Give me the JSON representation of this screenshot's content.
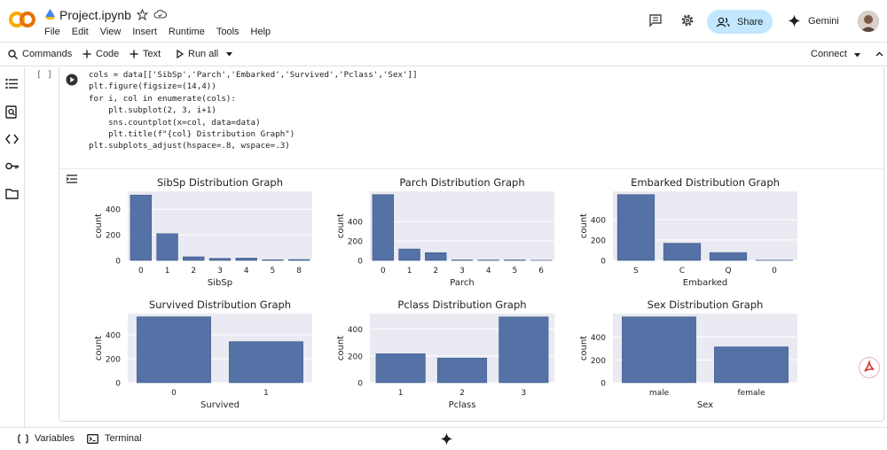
{
  "notebook": {
    "title": "Project.ipynb",
    "menu": [
      "File",
      "Edit",
      "View",
      "Insert",
      "Runtime",
      "Tools",
      "Help"
    ]
  },
  "header": {
    "share_label": "Share",
    "gemini_label": "Gemini"
  },
  "toolbar": {
    "commands_label": "Commands",
    "code_label": "Code",
    "text_label": "Text",
    "run_all_label": "Run all",
    "connect_label": "Connect"
  },
  "cell": {
    "execution_count": "[ ]",
    "code_lines": [
      "cols = data[['SibSp','Parch','Embarked','Survived','Pclass','Sex']]",
      "plt.figure(figsize=(14,4))",
      "for i, col in enumerate(cols):",
      "    plt.subplot(2, 3, i+1)",
      "    sns.countplot(x=col, data=data)",
      "    plt.title(f\"{col} Distribution Graph\")",
      "plt.subplots_adjust(hspace=.8, wspace=.3)"
    ]
  },
  "statusbar": {
    "variables_label": "Variables",
    "terminal_label": "Terminal"
  },
  "colors": {
    "bar": "#5572a6",
    "plot_bg": "#eaeaf2",
    "share_bg": "#c2e7ff",
    "logo_orange": "#f9ab00",
    "logo_dark": "#e8710a"
  },
  "chart_data": [
    {
      "type": "bar",
      "title": "SibSp Distribution Graph",
      "xlabel": "SibSp",
      "ylabel": "count",
      "categories": [
        "0",
        "1",
        "2",
        "3",
        "4",
        "5",
        "8"
      ],
      "values": [
        511,
        209,
        28,
        16,
        18,
        5,
        7
      ],
      "yticks": [
        0,
        200,
        400
      ],
      "ylim": [
        0,
        540
      ],
      "grid": true
    },
    {
      "type": "bar",
      "title": "Parch Distribution Graph",
      "xlabel": "Parch",
      "ylabel": "count",
      "categories": [
        "0",
        "1",
        "2",
        "3",
        "4",
        "5",
        "6"
      ],
      "values": [
        678,
        118,
        80,
        5,
        4,
        5,
        1
      ],
      "yticks": [
        0,
        200,
        400
      ],
      "ylim": [
        0,
        712
      ],
      "grid": true
    },
    {
      "type": "bar",
      "title": "Embarked Distribution Graph",
      "xlabel": "Embarked",
      "ylabel": "count",
      "categories": [
        "S",
        "C",
        "Q",
        "0"
      ],
      "values": [
        644,
        168,
        77,
        2
      ],
      "yticks": [
        0,
        200,
        400
      ],
      "ylim": [
        0,
        676
      ],
      "grid": true
    },
    {
      "type": "bar",
      "title": "Survived Distribution Graph",
      "xlabel": "Survived",
      "ylabel": "count",
      "categories": [
        "0",
        "1"
      ],
      "values": [
        549,
        342
      ],
      "yticks": [
        0,
        200,
        400
      ],
      "ylim": [
        0,
        576
      ],
      "grid": true
    },
    {
      "type": "bar",
      "title": "Pclass Distribution Graph",
      "xlabel": "Pclass",
      "ylabel": "count",
      "categories": [
        "1",
        "2",
        "3"
      ],
      "values": [
        216,
        184,
        491
      ],
      "yticks": [
        0,
        200,
        400
      ],
      "ylim": [
        0,
        516
      ],
      "grid": true
    },
    {
      "type": "bar",
      "title": "Sex Distribution Graph",
      "xlabel": "Sex",
      "ylabel": "count",
      "categories": [
        "male",
        "female"
      ],
      "values": [
        577,
        314
      ],
      "yticks": [
        0,
        200,
        400
      ],
      "ylim": [
        0,
        606
      ],
      "grid": true
    }
  ]
}
